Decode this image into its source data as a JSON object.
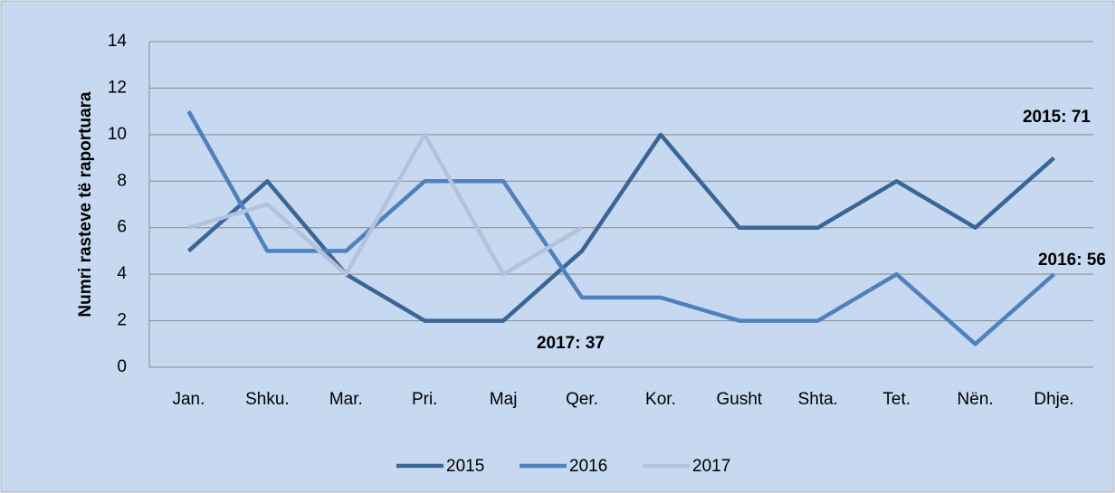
{
  "chart_data": {
    "type": "line",
    "y_label": "Numri rasteve të raportuara",
    "categories": [
      "Jan.",
      "Shku.",
      "Mar.",
      "Pri.",
      "Maj",
      "Qer.",
      "Kor.",
      "Gusht",
      "Shta.",
      "Tet.",
      "Nën.",
      "Dhje."
    ],
    "series": [
      {
        "name": "2015",
        "color": "#3a6594",
        "values": [
          5,
          8,
          4,
          2,
          2,
          5,
          10,
          6,
          6,
          8,
          6,
          9
        ]
      },
      {
        "name": "2016",
        "color": "#4f81bd",
        "values": [
          11,
          5,
          5,
          8,
          8,
          3,
          3,
          2,
          2,
          4,
          1,
          4
        ]
      },
      {
        "name": "2017",
        "color": "#b3c2db",
        "values": [
          6,
          7,
          4,
          10,
          4,
          6,
          null,
          null,
          null,
          null,
          null,
          null
        ]
      }
    ],
    "annotations": [
      {
        "text": "2015: 71"
      },
      {
        "text": "2016: 56"
      },
      {
        "text": "2017: 37"
      }
    ],
    "ylim": [
      0,
      14
    ],
    "yticks": [
      0,
      2,
      4,
      6,
      8,
      10,
      12,
      14
    ],
    "grid": true,
    "legend": "bottom"
  }
}
